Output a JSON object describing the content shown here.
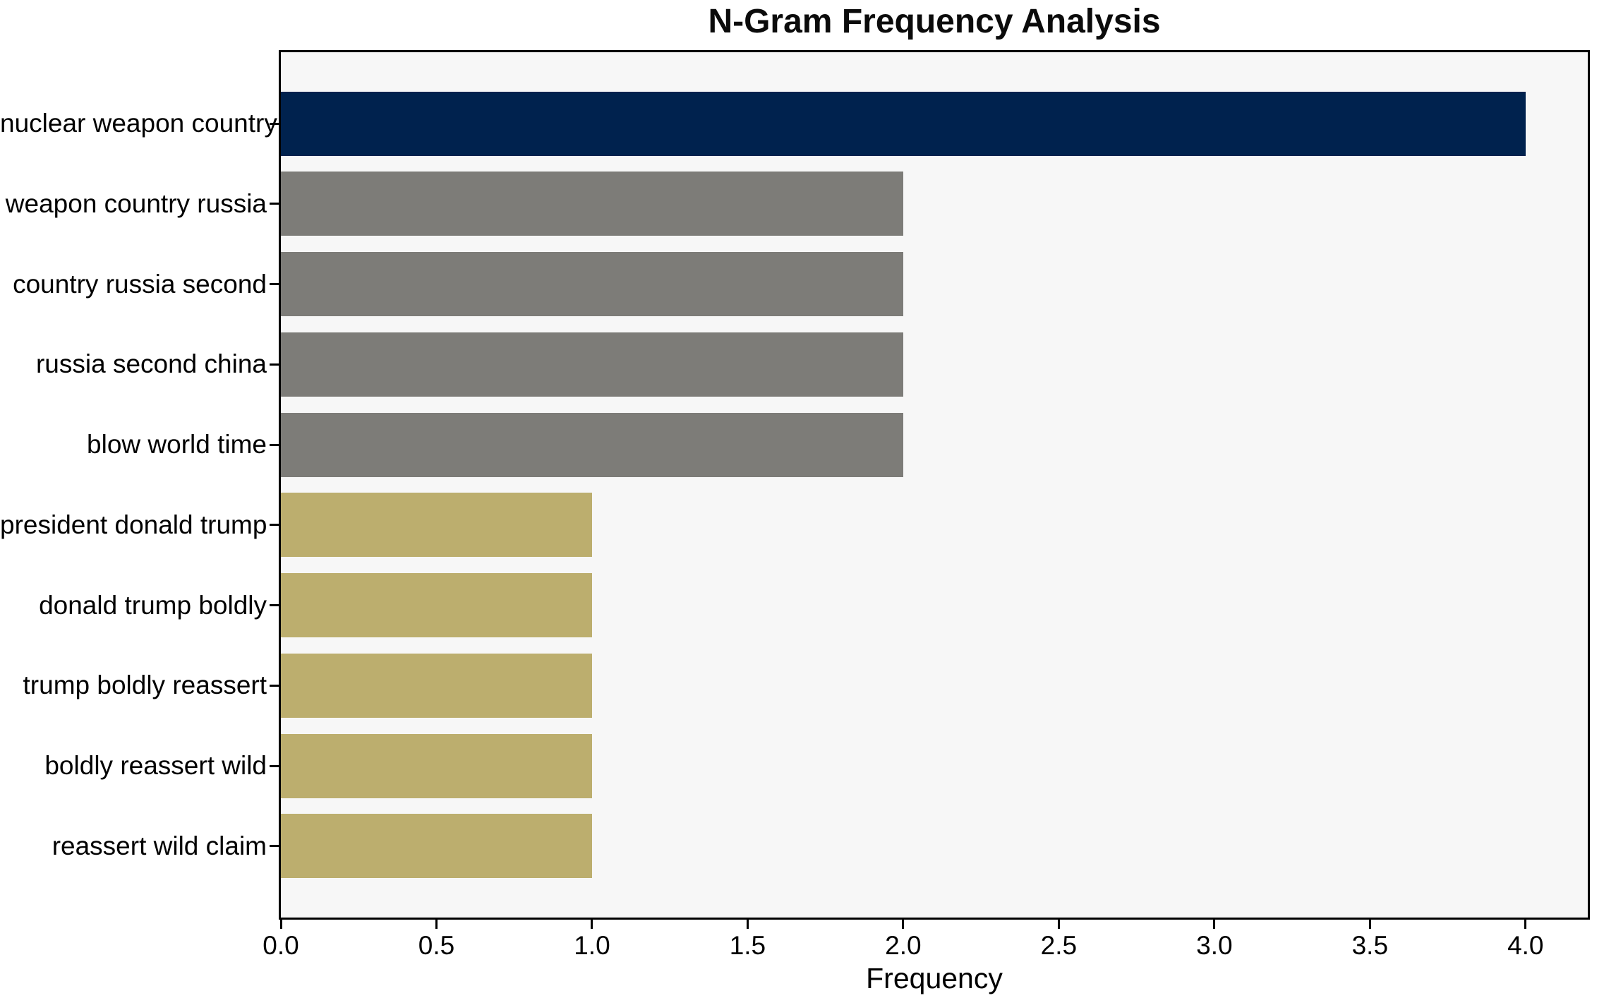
{
  "chart_data": {
    "type": "bar",
    "orientation": "horizontal",
    "title": "N-Gram Frequency Analysis",
    "xlabel": "Frequency",
    "ylabel": "",
    "categories": [
      "nuclear weapon country",
      "weapon country russia",
      "country russia second",
      "russia second china",
      "blow world time",
      "president donald trump",
      "donald trump boldly",
      "trump boldly reassert",
      "boldly reassert wild",
      "reassert wild claim"
    ],
    "values": [
      4,
      2,
      2,
      2,
      2,
      1,
      1,
      1,
      1,
      1
    ],
    "bar_colors": [
      "#00224e",
      "#7d7c78",
      "#7d7c78",
      "#7d7c78",
      "#7d7c78",
      "#bcae6e",
      "#bcae6e",
      "#bcae6e",
      "#bcae6e",
      "#bcae6e"
    ],
    "xlim": [
      0,
      4.2
    ],
    "x_ticks": [
      0.0,
      0.5,
      1.0,
      1.5,
      2.0,
      2.5,
      3.0,
      3.5,
      4.0
    ],
    "x_tick_labels": [
      "0.0",
      "0.5",
      "1.0",
      "1.5",
      "2.0",
      "2.5",
      "3.0",
      "3.5",
      "4.0"
    ],
    "grid": false,
    "legend": null,
    "bar_height_fraction": 0.8,
    "colors": {
      "plot_background": "#f7f7f7",
      "figure_background": "#ffffff",
      "axis": "#000000",
      "text": "#000000"
    }
  }
}
